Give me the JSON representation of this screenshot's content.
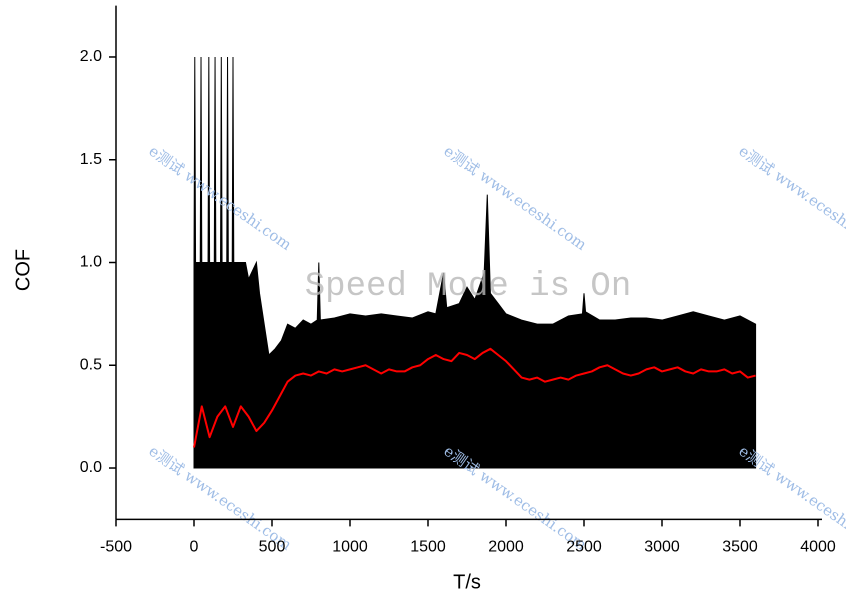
{
  "chart_data": {
    "type": "line",
    "x_label": "T/s",
    "y_label": "COF",
    "xlim": [
      -500,
      4000
    ],
    "xticks": [
      -500,
      0,
      500,
      1000,
      1500,
      2000,
      2500,
      3000,
      3500,
      4000
    ],
    "ylim": [
      -0.25,
      2.25
    ],
    "yticks": [
      {
        "value": 0,
        "label": "0.0"
      },
      {
        "value": 0.5,
        "label": "0.5"
      },
      {
        "value": 1,
        "label": "1.0"
      },
      {
        "value": 1.5,
        "label": "1.5"
      },
      {
        "value": 2,
        "label": "2.0"
      }
    ],
    "watermark": "e测试 www.eceshi.com",
    "annotation": "Speed Mode is On",
    "series": [
      {
        "color": "#000000",
        "area": true,
        "x": [
          0,
          5,
          10,
          40,
          45,
          50,
          90,
          95,
          100,
          130,
          135,
          140,
          170,
          175,
          180,
          210,
          215,
          220,
          245,
          250,
          255,
          330,
          350,
          400,
          420,
          450,
          480,
          520,
          560,
          600,
          650,
          700,
          750,
          790,
          800,
          810,
          900,
          1000,
          1100,
          1200,
          1300,
          1400,
          1500,
          1550,
          1600,
          1620,
          1700,
          1750,
          1800,
          1860,
          1880,
          1900,
          1950,
          2000,
          2100,
          2200,
          2300,
          2400,
          2490,
          2500,
          2510,
          2600,
          2700,
          2800,
          2900,
          3000,
          3100,
          3200,
          3300,
          3400,
          3500,
          3600
        ],
        "values": [
          1.0,
          2.0,
          1.0,
          1.0,
          2.0,
          1.0,
          1.0,
          2.0,
          1.0,
          1.0,
          2.0,
          1.0,
          1.0,
          2.0,
          1.0,
          1.0,
          2.0,
          1.0,
          1.0,
          2.0,
          1.0,
          1.0,
          0.92,
          1.0,
          0.85,
          0.7,
          0.55,
          0.58,
          0.62,
          0.7,
          0.68,
          0.72,
          0.7,
          0.72,
          1.0,
          0.72,
          0.73,
          0.75,
          0.74,
          0.75,
          0.74,
          0.73,
          0.76,
          0.75,
          0.95,
          0.78,
          0.8,
          0.88,
          0.82,
          0.95,
          1.33,
          0.85,
          0.8,
          0.75,
          0.72,
          0.7,
          0.7,
          0.74,
          0.75,
          0.85,
          0.76,
          0.72,
          0.72,
          0.73,
          0.73,
          0.72,
          0.74,
          0.76,
          0.74,
          0.72,
          0.74,
          0.7
        ]
      },
      {
        "color": "#ff0000",
        "area": false,
        "x": [
          0,
          50,
          100,
          150,
          200,
          250,
          300,
          350,
          400,
          450,
          500,
          550,
          600,
          650,
          700,
          750,
          800,
          850,
          900,
          950,
          1000,
          1050,
          1100,
          1150,
          1200,
          1250,
          1300,
          1350,
          1400,
          1450,
          1500,
          1550,
          1600,
          1650,
          1700,
          1750,
          1800,
          1850,
          1900,
          1950,
          2000,
          2050,
          2100,
          2150,
          2200,
          2250,
          2300,
          2350,
          2400,
          2450,
          2500,
          2550,
          2600,
          2650,
          2700,
          2750,
          2800,
          2850,
          2900,
          2950,
          3000,
          3050,
          3100,
          3150,
          3200,
          3250,
          3300,
          3350,
          3400,
          3450,
          3500,
          3550,
          3600
        ],
        "values": [
          0.1,
          0.3,
          0.15,
          0.25,
          0.3,
          0.2,
          0.3,
          0.25,
          0.18,
          0.22,
          0.28,
          0.35,
          0.42,
          0.45,
          0.46,
          0.45,
          0.47,
          0.46,
          0.48,
          0.47,
          0.48,
          0.49,
          0.5,
          0.48,
          0.46,
          0.48,
          0.47,
          0.47,
          0.49,
          0.5,
          0.53,
          0.55,
          0.53,
          0.52,
          0.56,
          0.55,
          0.53,
          0.56,
          0.58,
          0.55,
          0.52,
          0.48,
          0.44,
          0.43,
          0.44,
          0.42,
          0.43,
          0.44,
          0.43,
          0.45,
          0.46,
          0.47,
          0.49,
          0.5,
          0.48,
          0.46,
          0.45,
          0.46,
          0.48,
          0.49,
          0.47,
          0.48,
          0.49,
          0.47,
          0.46,
          0.48,
          0.47,
          0.47,
          0.48,
          0.46,
          0.47,
          0.44,
          0.45
        ]
      }
    ]
  }
}
